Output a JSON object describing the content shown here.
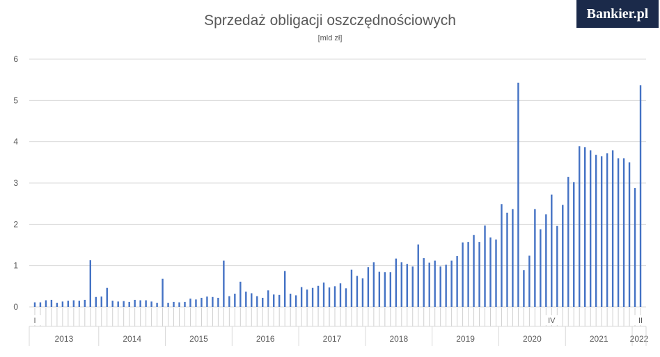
{
  "logo": "Bankier.pl",
  "chart_data": {
    "type": "bar",
    "title": "Sprzedaż obligacji oszczędnościowych",
    "subtitle": "[mld zł]",
    "ylim": [
      0,
      6
    ],
    "yticks": [
      0,
      1,
      2,
      3,
      4,
      5,
      6
    ],
    "grid": true,
    "years": [
      "2013",
      "2014",
      "2015",
      "2016",
      "2017",
      "2018",
      "2019",
      "2020",
      "2021",
      "2022"
    ],
    "month_markers": [
      {
        "index": 0,
        "label": "I"
      },
      {
        "index": 93,
        "label": "IV"
      },
      {
        "index": 109,
        "label": "II"
      }
    ],
    "values": [
      0.11,
      0.11,
      0.16,
      0.17,
      0.1,
      0.13,
      0.15,
      0.16,
      0.15,
      0.17,
      1.13,
      0.24,
      0.25,
      0.46,
      0.15,
      0.13,
      0.14,
      0.12,
      0.17,
      0.16,
      0.16,
      0.13,
      0.1,
      0.68,
      0.1,
      0.12,
      0.11,
      0.12,
      0.2,
      0.18,
      0.22,
      0.25,
      0.24,
      0.22,
      1.12,
      0.26,
      0.32,
      0.61,
      0.37,
      0.33,
      0.26,
      0.22,
      0.4,
      0.3,
      0.29,
      0.87,
      0.32,
      0.28,
      0.48,
      0.42,
      0.46,
      0.51,
      0.59,
      0.47,
      0.5,
      0.57,
      0.45,
      0.9,
      0.75,
      0.69,
      0.96,
      1.08,
      0.85,
      0.84,
      0.84,
      1.17,
      1.08,
      1.04,
      0.98,
      1.51,
      1.18,
      1.07,
      1.12,
      0.98,
      1.02,
      1.12,
      1.23,
      1.56,
      1.57,
      1.74,
      1.57,
      1.97,
      1.68,
      1.63,
      2.49,
      2.28,
      2.37,
      5.43,
      0.89,
      1.24,
      2.37,
      1.88,
      2.24,
      2.72,
      1.96,
      2.47,
      3.15,
      3.02,
      3.89,
      3.87,
      3.79,
      3.68,
      3.65,
      3.72,
      3.79,
      3.6,
      3.6,
      3.5,
      2.88,
      5.37
    ]
  }
}
